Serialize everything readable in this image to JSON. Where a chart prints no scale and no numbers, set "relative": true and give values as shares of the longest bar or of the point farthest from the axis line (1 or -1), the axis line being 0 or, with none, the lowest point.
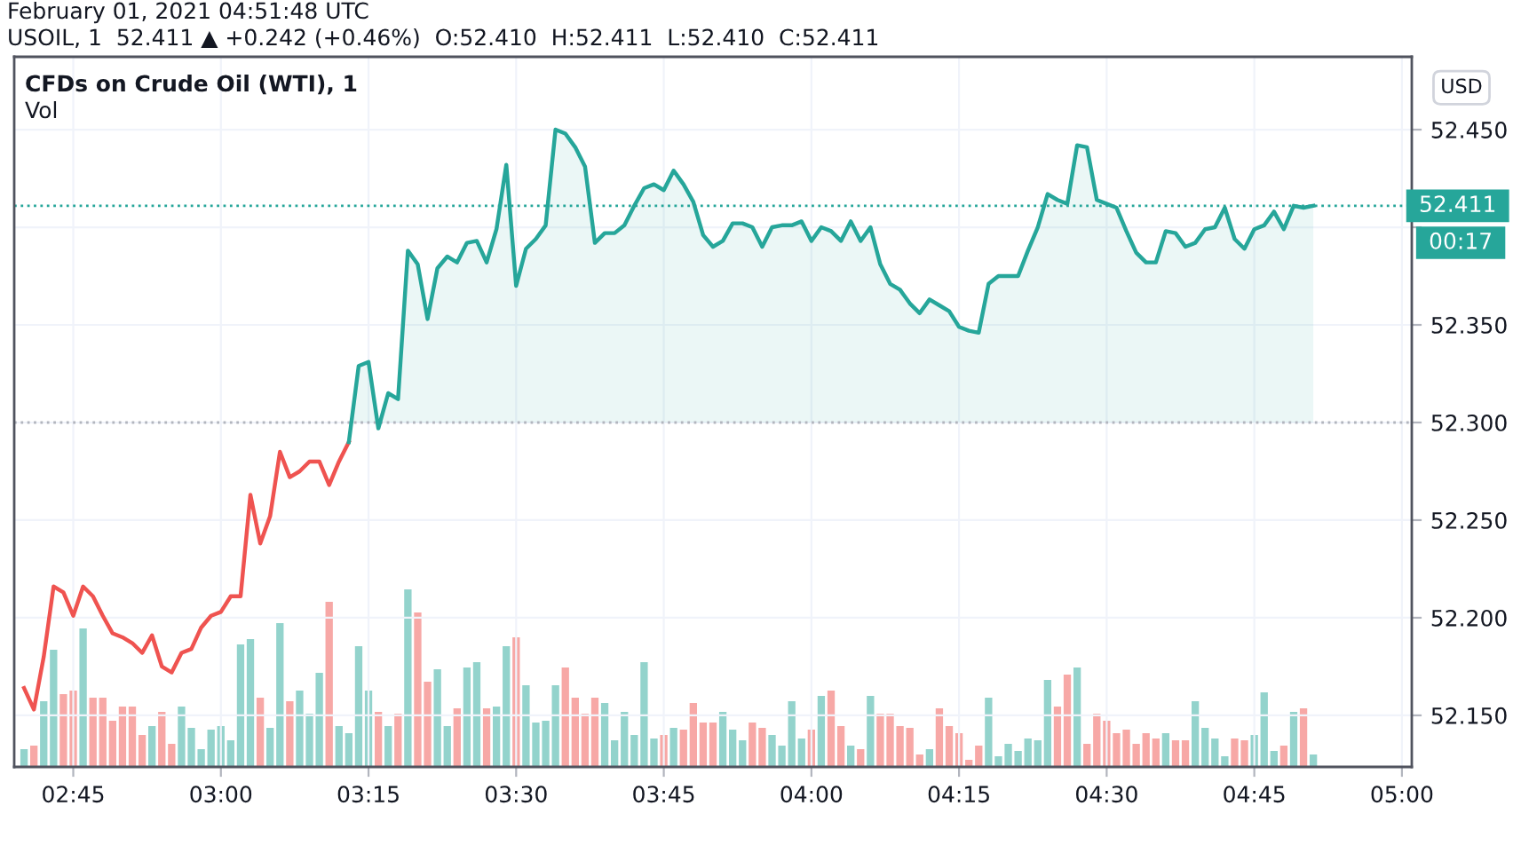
{
  "chart_data": [
    {
      "type": "line",
      "title": "CFDs on Crude Oil (WTI), 1",
      "subtitle": "USOIL, 1  52.411 ▲ +0.242 (+0.46%)  O:52.410  H:52.411  L:52.410  C:52.411",
      "ylabel": "USD",
      "annotations": [
        "February 01, 2021 04:51:48 UTC",
        "00:17"
      ],
      "series": [
        {
          "color": "#ef5350",
          "x": [
            "2021-02-01T02:40",
            "2021-02-01T02:41",
            "2021-02-01T02:42",
            "2021-02-01T02:43",
            "2021-02-01T02:44",
            "2021-02-01T02:45",
            "2021-02-01T02:46",
            "2021-02-01T02:47",
            "2021-02-01T02:48",
            "2021-02-01T02:49",
            "2021-02-01T02:50",
            "2021-02-01T02:51",
            "2021-02-01T02:52",
            "2021-02-01T02:53",
            "2021-02-01T02:54",
            "2021-02-01T02:55",
            "2021-02-01T02:56",
            "2021-02-01T02:57",
            "2021-02-01T02:58",
            "2021-02-01T02:59",
            "2021-02-01T03:00",
            "2021-02-01T03:01",
            "2021-02-01T03:02",
            "2021-02-01T03:03",
            "2021-02-01T03:04",
            "2021-02-01T03:05",
            "2021-02-01T03:06",
            "2021-02-01T03:07",
            "2021-02-01T03:08",
            "2021-02-01T03:09",
            "2021-02-01T03:10",
            "2021-02-01T03:11",
            "2021-02-01T03:12",
            "2021-02-01T03:13"
          ],
          "values": [
            52.164,
            52.153,
            52.18,
            52.216,
            52.213,
            52.201,
            52.216,
            52.211,
            52.201,
            52.192,
            52.19,
            52.187,
            52.182,
            52.191,
            52.175,
            52.172,
            52.182,
            52.184,
            52.195,
            52.201,
            52.203,
            52.211,
            52.211,
            52.263,
            52.238,
            52.252,
            52.285,
            52.272,
            52.275,
            52.28,
            52.28,
            52.268,
            52.28,
            52.29
          ]
        },
        {
          "color": "#26a69a",
          "x": [
            "2021-02-01T03:13",
            "2021-02-01T03:14",
            "2021-02-01T03:15",
            "2021-02-01T03:16",
            "2021-02-01T03:17",
            "2021-02-01T03:18",
            "2021-02-01T03:19",
            "2021-02-01T03:20",
            "2021-02-01T03:21",
            "2021-02-01T03:22",
            "2021-02-01T03:23",
            "2021-02-01T03:24",
            "2021-02-01T03:25",
            "2021-02-01T03:26",
            "2021-02-01T03:27",
            "2021-02-01T03:28",
            "2021-02-01T03:29",
            "2021-02-01T03:30",
            "2021-02-01T03:31",
            "2021-02-01T03:32",
            "2021-02-01T03:33",
            "2021-02-01T03:34",
            "2021-02-01T03:35",
            "2021-02-01T03:36",
            "2021-02-01T03:37",
            "2021-02-01T03:38",
            "2021-02-01T03:39",
            "2021-02-01T03:40",
            "2021-02-01T03:41",
            "2021-02-01T03:42",
            "2021-02-01T03:43",
            "2021-02-01T03:44",
            "2021-02-01T03:45",
            "2021-02-01T03:46",
            "2021-02-01T03:47",
            "2021-02-01T03:48",
            "2021-02-01T03:49",
            "2021-02-01T03:50",
            "2021-02-01T03:51",
            "2021-02-01T03:52",
            "2021-02-01T03:53",
            "2021-02-01T03:54",
            "2021-02-01T03:55",
            "2021-02-01T03:56",
            "2021-02-01T03:57",
            "2021-02-01T03:58",
            "2021-02-01T03:59",
            "2021-02-01T04:00",
            "2021-02-01T04:01",
            "2021-02-01T04:02",
            "2021-02-01T04:03",
            "2021-02-01T04:04",
            "2021-02-01T04:05",
            "2021-02-01T04:06",
            "2021-02-01T04:07",
            "2021-02-01T04:08",
            "2021-02-01T04:09",
            "2021-02-01T04:10",
            "2021-02-01T04:11",
            "2021-02-01T04:12",
            "2021-02-01T04:13",
            "2021-02-01T04:14",
            "2021-02-01T04:15",
            "2021-02-01T04:16",
            "2021-02-01T04:17",
            "2021-02-01T04:18",
            "2021-02-01T04:19",
            "2021-02-01T04:20",
            "2021-02-01T04:21",
            "2021-02-01T04:22",
            "2021-02-01T04:23",
            "2021-02-01T04:24",
            "2021-02-01T04:25",
            "2021-02-01T04:26",
            "2021-02-01T04:27",
            "2021-02-01T04:28",
            "2021-02-01T04:29",
            "2021-02-01T04:30",
            "2021-02-01T04:31",
            "2021-02-01T04:32",
            "2021-02-01T04:33",
            "2021-02-01T04:34",
            "2021-02-01T04:35",
            "2021-02-01T04:36",
            "2021-02-01T04:37",
            "2021-02-01T04:38",
            "2021-02-01T04:39",
            "2021-02-01T04:40",
            "2021-02-01T04:41",
            "2021-02-01T04:42",
            "2021-02-01T04:43",
            "2021-02-01T04:44",
            "2021-02-01T04:45",
            "2021-02-01T04:46",
            "2021-02-01T04:47",
            "2021-02-01T04:48",
            "2021-02-01T04:49",
            "2021-02-01T04:50",
            "2021-02-01T04:51"
          ],
          "values": [
            52.29,
            52.329,
            52.331,
            52.297,
            52.315,
            52.312,
            52.388,
            52.381,
            52.353,
            52.379,
            52.385,
            52.382,
            52.392,
            52.393,
            52.382,
            52.399,
            52.432,
            52.37,
            52.389,
            52.394,
            52.401,
            52.45,
            52.448,
            52.441,
            52.431,
            52.392,
            52.397,
            52.397,
            52.401,
            52.411,
            52.42,
            52.422,
            52.419,
            52.429,
            52.422,
            52.413,
            52.396,
            52.39,
            52.393,
            52.402,
            52.402,
            52.4,
            52.39,
            52.4,
            52.401,
            52.401,
            52.403,
            52.393,
            52.4,
            52.398,
            52.393,
            52.403,
            52.393,
            52.4,
            52.381,
            52.371,
            52.368,
            52.361,
            52.356,
            52.363,
            52.36,
            52.357,
            52.349,
            52.347,
            52.346,
            52.371,
            52.375,
            52.375,
            52.375,
            52.388,
            52.4,
            52.417,
            52.414,
            52.412,
            52.442,
            52.441,
            52.414,
            52.412,
            52.41,
            52.398,
            52.387,
            52.382,
            52.382,
            52.398,
            52.397,
            52.39,
            52.392,
            52.399,
            52.4,
            52.41,
            52.394,
            52.389,
            52.399,
            52.401,
            52.408,
            52.399,
            52.411,
            52.41,
            52.411
          ]
        }
      ],
      "ref_lines": [
        {
          "axis": "y",
          "value": 52.3,
          "color": "#b2b5be",
          "line_style": "dotted"
        },
        {
          "axis": "y",
          "value": 52.411,
          "label": "52.411",
          "color": "#26a69a",
          "line_style": "dotted"
        }
      ],
      "xlim": [
        "2021-02-01T02:39",
        "2021-02-01T05:01"
      ],
      "xticks": [
        {
          "value": "2021-02-01T02:45",
          "label": "02:45"
        },
        {
          "value": "2021-02-01T03:00",
          "label": "03:00"
        },
        {
          "value": "2021-02-01T03:15",
          "label": "03:15"
        },
        {
          "value": "2021-02-01T03:30",
          "label": "03:30"
        },
        {
          "value": "2021-02-01T03:45",
          "label": "03:45"
        },
        {
          "value": "2021-02-01T04:00",
          "label": "04:00"
        },
        {
          "value": "2021-02-01T04:15",
          "label": "04:15"
        },
        {
          "value": "2021-02-01T04:30",
          "label": "04:30"
        },
        {
          "value": "2021-02-01T04:45",
          "label": "04:45"
        },
        {
          "value": "2021-02-01T05:00",
          "label": "05:00"
        }
      ],
      "ylim": [
        52.1236,
        52.4873
      ],
      "yticks": [
        {
          "value": 52.15,
          "label": "52.150"
        },
        {
          "value": 52.2,
          "label": "52.200"
        },
        {
          "value": 52.25,
          "label": "52.250"
        },
        {
          "value": 52.3,
          "label": "52.300"
        },
        {
          "value": 52.35,
          "label": "52.350"
        },
        {
          "value": 52.4,
          "label": null
        },
        {
          "value": 52.45,
          "label": "52.450"
        }
      ],
      "grid": true,
      "legend": false,
      "marker": "none",
      "line_style": "solid"
    },
    {
      "type": "bar",
      "title": "Vol",
      "relative": true,
      "tick_labels": false,
      "x": [
        "2021-02-01T02:40",
        "2021-02-01T02:41",
        "2021-02-01T02:42",
        "2021-02-01T02:43",
        "2021-02-01T02:44",
        "2021-02-01T02:45",
        "2021-02-01T02:46",
        "2021-02-01T02:47",
        "2021-02-01T02:48",
        "2021-02-01T02:49",
        "2021-02-01T02:50",
        "2021-02-01T02:51",
        "2021-02-01T02:52",
        "2021-02-01T02:53",
        "2021-02-01T02:54",
        "2021-02-01T02:55",
        "2021-02-01T02:56",
        "2021-02-01T02:57",
        "2021-02-01T02:58",
        "2021-02-01T02:59",
        "2021-02-01T03:00",
        "2021-02-01T03:01",
        "2021-02-01T03:02",
        "2021-02-01T03:03",
        "2021-02-01T03:04",
        "2021-02-01T03:05",
        "2021-02-01T03:06",
        "2021-02-01T03:07",
        "2021-02-01T03:08",
        "2021-02-01T03:09",
        "2021-02-01T03:10",
        "2021-02-01T03:11",
        "2021-02-01T03:12",
        "2021-02-01T03:13",
        "2021-02-01T03:14",
        "2021-02-01T03:15",
        "2021-02-01T03:16",
        "2021-02-01T03:17",
        "2021-02-01T03:18",
        "2021-02-01T03:19",
        "2021-02-01T03:20",
        "2021-02-01T03:21",
        "2021-02-01T03:22",
        "2021-02-01T03:23",
        "2021-02-01T03:24",
        "2021-02-01T03:25",
        "2021-02-01T03:26",
        "2021-02-01T03:27",
        "2021-02-01T03:28",
        "2021-02-01T03:29",
        "2021-02-01T03:30",
        "2021-02-01T03:31",
        "2021-02-01T03:32",
        "2021-02-01T03:33",
        "2021-02-01T03:34",
        "2021-02-01T03:35",
        "2021-02-01T03:36",
        "2021-02-01T03:37",
        "2021-02-01T03:38",
        "2021-02-01T03:39",
        "2021-02-01T03:40",
        "2021-02-01T03:41",
        "2021-02-01T03:42",
        "2021-02-01T03:43",
        "2021-02-01T03:44",
        "2021-02-01T03:45",
        "2021-02-01T03:46",
        "2021-02-01T03:47",
        "2021-02-01T03:48",
        "2021-02-01T03:49",
        "2021-02-01T03:50",
        "2021-02-01T03:51",
        "2021-02-01T03:52",
        "2021-02-01T03:53",
        "2021-02-01T03:54",
        "2021-02-01T03:55",
        "2021-02-01T03:56",
        "2021-02-01T03:57",
        "2021-02-01T03:58",
        "2021-02-01T03:59",
        "2021-02-01T04:00",
        "2021-02-01T04:01",
        "2021-02-01T04:02",
        "2021-02-01T04:03",
        "2021-02-01T04:04",
        "2021-02-01T04:05",
        "2021-02-01T04:06",
        "2021-02-01T04:07",
        "2021-02-01T04:08",
        "2021-02-01T04:09",
        "2021-02-01T04:10",
        "2021-02-01T04:11",
        "2021-02-01T04:12",
        "2021-02-01T04:13",
        "2021-02-01T04:14",
        "2021-02-01T04:15",
        "2021-02-01T04:16",
        "2021-02-01T04:17",
        "2021-02-01T04:18",
        "2021-02-01T04:19",
        "2021-02-01T04:20",
        "2021-02-01T04:21",
        "2021-02-01T04:22",
        "2021-02-01T04:23",
        "2021-02-01T04:24",
        "2021-02-01T04:25",
        "2021-02-01T04:26",
        "2021-02-01T04:27",
        "2021-02-01T04:28",
        "2021-02-01T04:29",
        "2021-02-01T04:30",
        "2021-02-01T04:31",
        "2021-02-01T04:32",
        "2021-02-01T04:33",
        "2021-02-01T04:34",
        "2021-02-01T04:35",
        "2021-02-01T04:36",
        "2021-02-01T04:37",
        "2021-02-01T04:38",
        "2021-02-01T04:39",
        "2021-02-01T04:40",
        "2021-02-01T04:41",
        "2021-02-01T04:42",
        "2021-02-01T04:43",
        "2021-02-01T04:44",
        "2021-02-01T04:45",
        "2021-02-01T04:46",
        "2021-02-01T04:47",
        "2021-02-01T04:48",
        "2021-02-01T04:49",
        "2021-02-01T04:50",
        "2021-02-01T04:51"
      ],
      "values": [
        0.1,
        0.12,
        0.37,
        0.66,
        0.41,
        0.43,
        0.78,
        0.39,
        0.39,
        0.26,
        0.34,
        0.34,
        0.18,
        0.23,
        0.31,
        0.13,
        0.34,
        0.22,
        0.1,
        0.21,
        0.23,
        0.15,
        0.69,
        0.72,
        0.39,
        0.22,
        0.81,
        0.37,
        0.43,
        0.3,
        0.53,
        0.93,
        0.23,
        0.19,
        0.68,
        0.43,
        0.31,
        0.23,
        0.3,
        1,
        0.87,
        0.48,
        0.55,
        0.23,
        0.33,
        0.56,
        0.59,
        0.33,
        0.34,
        0.68,
        0.73,
        0.46,
        0.25,
        0.26,
        0.46,
        0.56,
        0.39,
        0.3,
        0.39,
        0.36,
        0.15,
        0.31,
        0.18,
        0.59,
        0.16,
        0.18,
        0.22,
        0.21,
        0.36,
        0.25,
        0.25,
        0.31,
        0.21,
        0.15,
        0.25,
        0.22,
        0.18,
        0.12,
        0.37,
        0.16,
        0.21,
        0.4,
        0.43,
        0.23,
        0.12,
        0.1,
        0.4,
        0.3,
        0.3,
        0.23,
        0.22,
        0.07,
        0.1,
        0.33,
        0.23,
        0.19,
        0.04,
        0.12,
        0.39,
        0.06,
        0.13,
        0.09,
        0.16,
        0.15,
        0.49,
        0.34,
        0.52,
        0.56,
        0.13,
        0.3,
        0.26,
        0.19,
        0.21,
        0.13,
        0.19,
        0.16,
        0.19,
        0.15,
        0.15,
        0.37,
        0.22,
        0.16,
        0.06,
        0.16,
        0.15,
        0.18,
        0.42,
        0.09,
        0.12,
        0.31,
        0.33,
        0.07
      ],
      "colors": [
        "#93d3cc",
        "#f7a8a6",
        "#93d3cc",
        "#93d3cc",
        "#f7a8a6",
        "#f7a8a6",
        "#93d3cc",
        "#f7a8a6",
        "#f7a8a6",
        "#f7a8a6",
        "#f7a8a6",
        "#f7a8a6",
        "#f7a8a6",
        "#93d3cc",
        "#f7a8a6",
        "#f7a8a6",
        "#93d3cc",
        "#93d3cc",
        "#93d3cc",
        "#93d3cc",
        "#93d3cc",
        "#93d3cc",
        "#93d3cc",
        "#93d3cc",
        "#f7a8a6",
        "#93d3cc",
        "#93d3cc",
        "#f7a8a6",
        "#93d3cc",
        "#93d3cc",
        "#93d3cc",
        "#f7a8a6",
        "#93d3cc",
        "#93d3cc",
        "#93d3cc",
        "#93d3cc",
        "#f7a8a6",
        "#93d3cc",
        "#f7a8a6",
        "#93d3cc",
        "#f7a8a6",
        "#f7a8a6",
        "#93d3cc",
        "#93d3cc",
        "#f7a8a6",
        "#93d3cc",
        "#93d3cc",
        "#f7a8a6",
        "#93d3cc",
        "#93d3cc",
        "#f7a8a6",
        "#93d3cc",
        "#93d3cc",
        "#93d3cc",
        "#93d3cc",
        "#f7a8a6",
        "#f7a8a6",
        "#f7a8a6",
        "#f7a8a6",
        "#93d3cc",
        "#93d3cc",
        "#93d3cc",
        "#93d3cc",
        "#93d3cc",
        "#93d3cc",
        "#f7a8a6",
        "#93d3cc",
        "#f7a8a6",
        "#f7a8a6",
        "#f7a8a6",
        "#f7a8a6",
        "#93d3cc",
        "#93d3cc",
        "#93d3cc",
        "#f7a8a6",
        "#f7a8a6",
        "#93d3cc",
        "#93d3cc",
        "#93d3cc",
        "#93d3cc",
        "#f7a8a6",
        "#93d3cc",
        "#f7a8a6",
        "#f7a8a6",
        "#93d3cc",
        "#f7a8a6",
        "#93d3cc",
        "#f7a8a6",
        "#f7a8a6",
        "#f7a8a6",
        "#f7a8a6",
        "#f7a8a6",
        "#93d3cc",
        "#f7a8a6",
        "#f7a8a6",
        "#f7a8a6",
        "#f7a8a6",
        "#f7a8a6",
        "#93d3cc",
        "#93d3cc",
        "#93d3cc",
        "#93d3cc",
        "#93d3cc",
        "#93d3cc",
        "#93d3cc",
        "#f7a8a6",
        "#f7a8a6",
        "#93d3cc",
        "#f7a8a6",
        "#f7a8a6",
        "#f7a8a6",
        "#f7a8a6",
        "#f7a8a6",
        "#f7a8a6",
        "#f7a8a6",
        "#f7a8a6",
        "#93d3cc",
        "#f7a8a6",
        "#f7a8a6",
        "#93d3cc",
        "#93d3cc",
        "#93d3cc",
        "#93d3cc",
        "#f7a8a6",
        "#f7a8a6",
        "#93d3cc",
        "#93d3cc",
        "#93d3cc",
        "#f7a8a6",
        "#93d3cc",
        "#f7a8a6",
        "#93d3cc"
      ],
      "xlim": [
        "2021-02-01T02:39",
        "2021-02-01T05:01"
      ]
    }
  ]
}
